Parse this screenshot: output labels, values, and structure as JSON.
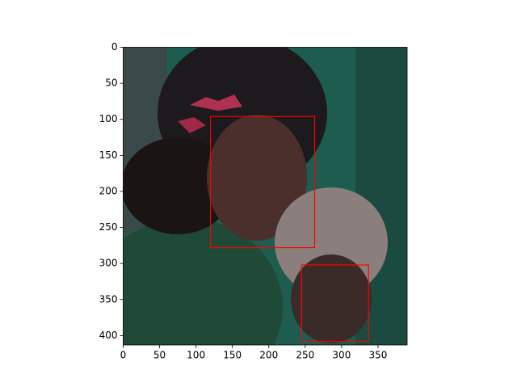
{
  "chart_data": {
    "type": "image",
    "xlim": [
      0,
      390
    ],
    "ylim": [
      413,
      0
    ],
    "xticks": [
      0,
      50,
      100,
      150,
      200,
      250,
      300,
      350
    ],
    "yticks": [
      0,
      50,
      100,
      150,
      200,
      250,
      300,
      350,
      400
    ],
    "box_color": "#ff0000",
    "boxes": [
      {
        "x1": 120,
        "y1": 96,
        "x2": 263,
        "y2": 278
      },
      {
        "x1": 245,
        "y1": 302,
        "x2": 337,
        "y2": 408
      }
    ]
  }
}
